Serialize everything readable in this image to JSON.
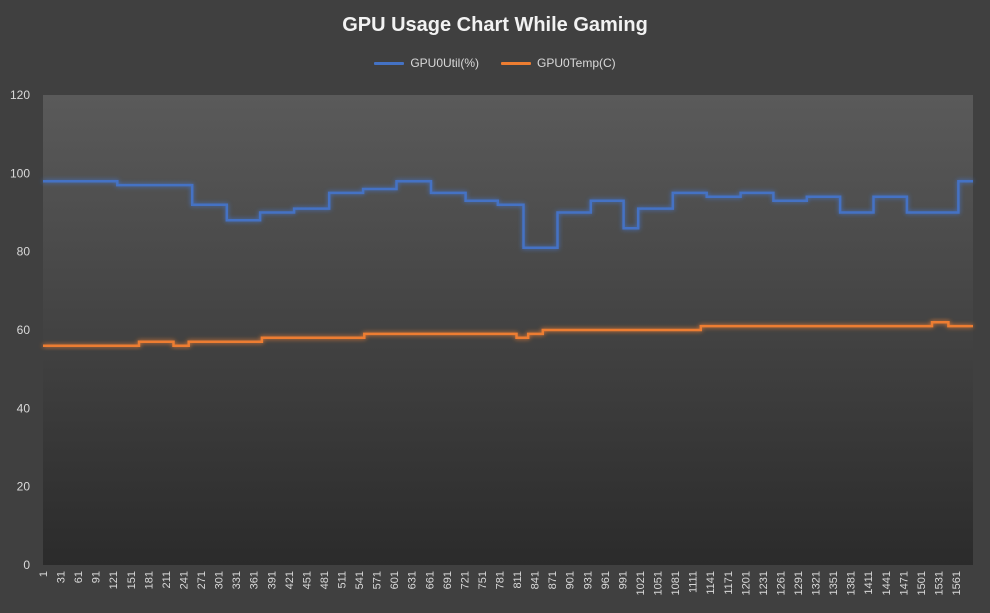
{
  "chart_data": {
    "type": "line",
    "title": "GPU Usage Chart While Gaming",
    "xlabel": "",
    "ylabel": "",
    "ylim": [
      0,
      120
    ],
    "yticks": [
      0,
      20,
      40,
      60,
      80,
      100,
      120
    ],
    "xlim": [
      1,
      1590
    ],
    "xticks": [
      1,
      31,
      61,
      91,
      121,
      151,
      181,
      211,
      241,
      271,
      301,
      331,
      361,
      391,
      421,
      451,
      481,
      511,
      541,
      571,
      601,
      631,
      661,
      691,
      721,
      751,
      781,
      811,
      841,
      871,
      901,
      931,
      961,
      991,
      1021,
      1051,
      1081,
      1111,
      1141,
      1171,
      1201,
      1231,
      1261,
      1291,
      1321,
      1351,
      1381,
      1411,
      1441,
      1471,
      1501,
      1531,
      1561
    ],
    "grid": false,
    "legend_position": "top",
    "series": [
      {
        "name": "GPU0Util(%)",
        "color": "#4472c4",
        "points": [
          [
            1,
            98
          ],
          [
            128,
            98
          ],
          [
            128,
            97
          ],
          [
            256,
            97
          ],
          [
            256,
            92
          ],
          [
            315,
            92
          ],
          [
            315,
            88
          ],
          [
            372,
            88
          ],
          [
            372,
            90
          ],
          [
            430,
            90
          ],
          [
            430,
            91
          ],
          [
            490,
            91
          ],
          [
            490,
            95
          ],
          [
            548,
            95
          ],
          [
            548,
            96
          ],
          [
            605,
            96
          ],
          [
            605,
            98
          ],
          [
            664,
            98
          ],
          [
            664,
            95
          ],
          [
            723,
            95
          ],
          [
            723,
            93
          ],
          [
            778,
            93
          ],
          [
            778,
            92
          ],
          [
            822,
            92
          ],
          [
            822,
            81
          ],
          [
            880,
            81
          ],
          [
            880,
            90
          ],
          [
            937,
            90
          ],
          [
            937,
            93
          ],
          [
            993,
            93
          ],
          [
            993,
            86
          ],
          [
            1018,
            86
          ],
          [
            1018,
            91
          ],
          [
            1077,
            91
          ],
          [
            1077,
            95
          ],
          [
            1135,
            95
          ],
          [
            1135,
            94
          ],
          [
            1193,
            94
          ],
          [
            1193,
            95
          ],
          [
            1249,
            95
          ],
          [
            1249,
            93
          ],
          [
            1306,
            93
          ],
          [
            1306,
            94
          ],
          [
            1363,
            94
          ],
          [
            1363,
            90
          ],
          [
            1420,
            90
          ],
          [
            1420,
            94
          ],
          [
            1477,
            94
          ],
          [
            1477,
            90
          ],
          [
            1565,
            90
          ],
          [
            1565,
            98
          ],
          [
            1590,
            98
          ]
        ]
      },
      {
        "name": "GPU0Temp(C)",
        "color": "#ed7d31",
        "points": [
          [
            1,
            56
          ],
          [
            165,
            56
          ],
          [
            165,
            57
          ],
          [
            224,
            57
          ],
          [
            224,
            56
          ],
          [
            250,
            56
          ],
          [
            250,
            57
          ],
          [
            375,
            57
          ],
          [
            375,
            58
          ],
          [
            550,
            58
          ],
          [
            550,
            59
          ],
          [
            810,
            59
          ],
          [
            810,
            58
          ],
          [
            830,
            58
          ],
          [
            830,
            59
          ],
          [
            855,
            59
          ],
          [
            855,
            60
          ],
          [
            1125,
            60
          ],
          [
            1125,
            61
          ],
          [
            1520,
            61
          ],
          [
            1520,
            62
          ],
          [
            1548,
            62
          ],
          [
            1548,
            61
          ],
          [
            1590,
            61
          ]
        ]
      }
    ]
  }
}
